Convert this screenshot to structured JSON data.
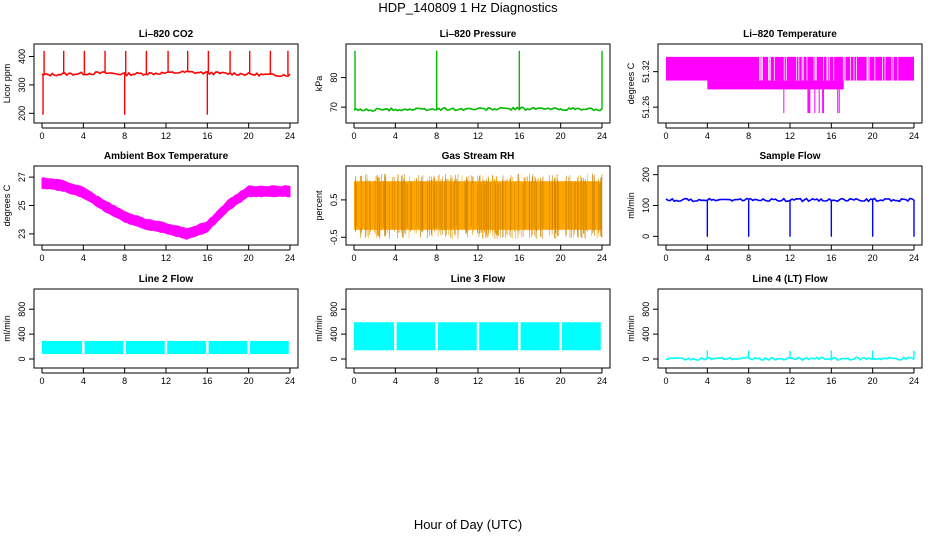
{
  "page": {
    "title": "HDP_140809  1 Hz Diagnostics",
    "footer": "Hour of Day (UTC)"
  },
  "chart_data": [
    {
      "id": "co2",
      "type": "line",
      "title": "Li–820 CO2",
      "ylabel": "Licor ppm",
      "color": "#ff0000",
      "style": "spiky",
      "xlim": [
        0,
        24
      ],
      "xticks": [
        0,
        4,
        8,
        12,
        16,
        20,
        24
      ],
      "ylim": [
        180,
        430
      ],
      "yticks": [
        200,
        300,
        400
      ],
      "series": [
        {
          "x": [
            0,
            2,
            4,
            6,
            8,
            10,
            12,
            14,
            16,
            18,
            20,
            22,
            24
          ],
          "values": [
            335,
            338,
            340,
            342,
            338,
            340,
            342,
            345,
            342,
            340,
            338,
            335,
            335
          ]
        }
      ],
      "spikes_up": [
        0.2,
        2.1,
        4.1,
        6.1,
        8.1,
        10.1,
        12.2,
        14.1,
        16.1,
        18.2,
        20.1,
        22.1,
        23.8
      ],
      "spikes_down": [
        0.1,
        8.0,
        16.0
      ]
    },
    {
      "id": "pressure",
      "type": "line",
      "title": "Li–820 Pressure",
      "ylabel": "kPa",
      "color": "#00bb00",
      "style": "spiky",
      "xlim": [
        0,
        24
      ],
      "xticks": [
        0,
        4,
        8,
        12,
        16,
        20,
        24
      ],
      "ylim": [
        66,
        90
      ],
      "yticks": [
        70,
        80
      ],
      "series": [
        {
          "x": [
            0,
            4,
            8,
            12,
            16,
            20,
            24
          ],
          "values": [
            69.0,
            69.2,
            69.3,
            69.4,
            69.5,
            69.4,
            69.3
          ]
        }
      ],
      "spikes_up": [
        0.1,
        8.0,
        16.0,
        24.0
      ]
    },
    {
      "id": "licor-temp",
      "type": "area",
      "title": "Li–820 Temperature",
      "ylabel": "degrees C",
      "color": "#ff00ff",
      "style": "band",
      "xlim": [
        0,
        24
      ],
      "xticks": [
        0,
        4,
        8,
        12,
        16,
        20,
        24
      ],
      "ylim": [
        51.24,
        51.36
      ],
      "yticks": [
        51.26,
        51.32
      ],
      "series": [
        {
          "x": [
            0,
            24
          ],
          "values": [
            51.315,
            51.315
          ]
        }
      ]
    },
    {
      "id": "box-temp",
      "type": "area",
      "title": "Ambient Box Temperature",
      "ylabel": "degrees C",
      "color": "#ff00ff",
      "style": "band",
      "xlim": [
        0,
        24
      ],
      "xticks": [
        0,
        4,
        8,
        12,
        16,
        20,
        24
      ],
      "ylim": [
        22.5,
        27.5
      ],
      "yticks": [
        23,
        25,
        27
      ],
      "series": [
        {
          "x": [
            0,
            2,
            4,
            6,
            8,
            10,
            12,
            14,
            16,
            18,
            20,
            22,
            24
          ],
          "values": [
            26.6,
            26.4,
            25.9,
            25.0,
            24.2,
            23.7,
            23.4,
            23.0,
            23.5,
            25.0,
            26.0,
            26.0,
            26.0
          ]
        }
      ]
    },
    {
      "id": "rh",
      "type": "area",
      "title": "Gas Stream RH",
      "ylabel": "percent",
      "color": "#ffa500",
      "style": "noise",
      "xlim": [
        0,
        24
      ],
      "xticks": [
        0,
        4,
        8,
        12,
        16,
        20,
        24
      ],
      "ylim": [
        -0.6,
        1.3
      ],
      "yticks": [
        -0.5,
        0.5
      ],
      "series": [
        {
          "x": [
            0,
            24
          ],
          "values": [
            0.35,
            0.35
          ]
        }
      ]
    },
    {
      "id": "sample-flow",
      "type": "line",
      "title": "Sample Flow",
      "ylabel": "ml/min",
      "color": "#0000ff",
      "style": "dips",
      "xlim": [
        0,
        24
      ],
      "xticks": [
        0,
        4,
        8,
        12,
        16,
        20,
        24
      ],
      "ylim": [
        -15,
        215
      ],
      "yticks": [
        0,
        100,
        200
      ],
      "series": [
        {
          "x": [
            0,
            24
          ],
          "values": [
            118,
            118
          ]
        }
      ],
      "spikes_down": [
        4.0,
        8.0,
        12.0,
        16.0,
        20.0,
        24.0
      ]
    },
    {
      "id": "line2-flow",
      "type": "area",
      "title": "Line 2 Flow",
      "ylabel": "ml/min",
      "color": "#00ffff",
      "style": "block",
      "xlim": [
        0,
        24
      ],
      "xticks": [
        0,
        4,
        8,
        12,
        16,
        20,
        24
      ],
      "ylim": [
        -80,
        1060
      ],
      "yticks": [
        0,
        400,
        800
      ],
      "series": [
        {
          "x": [
            0,
            24
          ],
          "values": [
            290,
            290
          ]
        }
      ],
      "block_low": 80,
      "gaps": [
        4.0,
        8.0,
        12.0,
        16.0,
        20.0
      ]
    },
    {
      "id": "line3-flow",
      "type": "area",
      "title": "Line 3 Flow",
      "ylabel": "ml/min",
      "color": "#00ffff",
      "style": "block",
      "xlim": [
        0,
        24
      ],
      "xticks": [
        0,
        4,
        8,
        12,
        16,
        20,
        24
      ],
      "ylim": [
        -80,
        1060
      ],
      "yticks": [
        0,
        400,
        800
      ],
      "series": [
        {
          "x": [
            0,
            24
          ],
          "values": [
            590,
            590
          ]
        }
      ],
      "block_low": 140,
      "gaps": [
        4.0,
        8.0,
        12.0,
        16.0,
        20.0
      ]
    },
    {
      "id": "line4-flow",
      "type": "line",
      "title": "Line 4 (LT) Flow",
      "ylabel": "ml/min",
      "color": "#00ffff",
      "style": "spiky",
      "xlim": [
        0,
        24
      ],
      "xticks": [
        0,
        4,
        8,
        12,
        16,
        20,
        24
      ],
      "ylim": [
        -80,
        1060
      ],
      "yticks": [
        0,
        400,
        800
      ],
      "series": [
        {
          "x": [
            0,
            24
          ],
          "values": [
            5,
            5
          ]
        }
      ],
      "spikes_up": [
        4.0,
        8.0,
        12.0,
        16.0,
        20.0,
        24.0
      ]
    }
  ]
}
